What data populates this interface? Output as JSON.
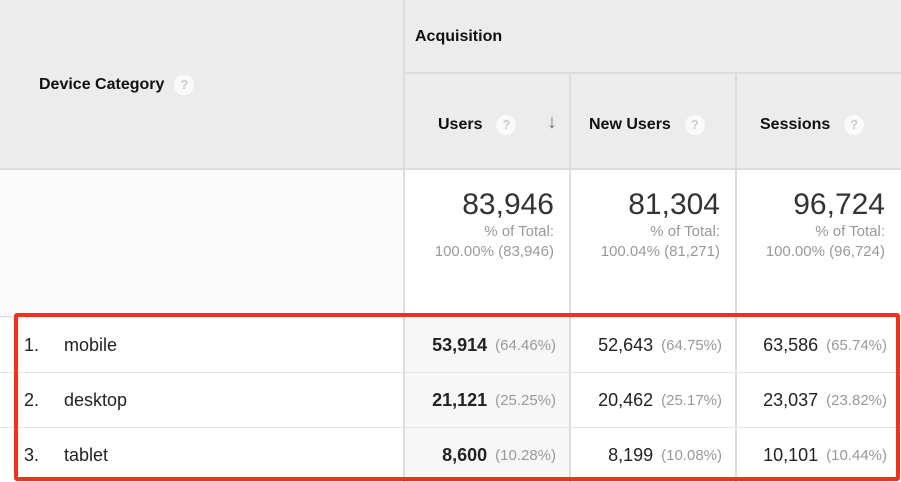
{
  "header": {
    "dimension_label": "Device Category",
    "group_label": "Acquisition",
    "columns": [
      {
        "label": "Users",
        "sorted": "descending"
      },
      {
        "label": "New Users"
      },
      {
        "label": "Sessions"
      }
    ],
    "help_icon": "?"
  },
  "totals": [
    {
      "value": "83,946",
      "line1": "% of Total:",
      "line2": "100.00% (83,946)"
    },
    {
      "value": "81,304",
      "line1": "% of Total:",
      "line2": "100.04% (81,271)"
    },
    {
      "value": "96,724",
      "line1": "% of Total:",
      "line2": "100.00% (96,724)"
    }
  ],
  "rows": [
    {
      "index": "1.",
      "name": "mobile",
      "cells": [
        {
          "v": "53,914",
          "p": "(64.46%)"
        },
        {
          "v": "52,643",
          "p": "(64.75%)"
        },
        {
          "v": "63,586",
          "p": "(65.74%)"
        }
      ]
    },
    {
      "index": "2.",
      "name": "desktop",
      "cells": [
        {
          "v": "21,121",
          "p": "(25.25%)"
        },
        {
          "v": "20,462",
          "p": "(25.17%)"
        },
        {
          "v": "23,037",
          "p": "(23.82%)"
        }
      ]
    },
    {
      "index": "3.",
      "name": "tablet",
      "cells": [
        {
          "v": "8,600",
          "p": "(10.28%)"
        },
        {
          "v": "8,199",
          "p": "(10.08%)"
        },
        {
          "v": "10,101",
          "p": "(10.44%)"
        }
      ]
    }
  ],
  "highlight_color": "#f4301c"
}
